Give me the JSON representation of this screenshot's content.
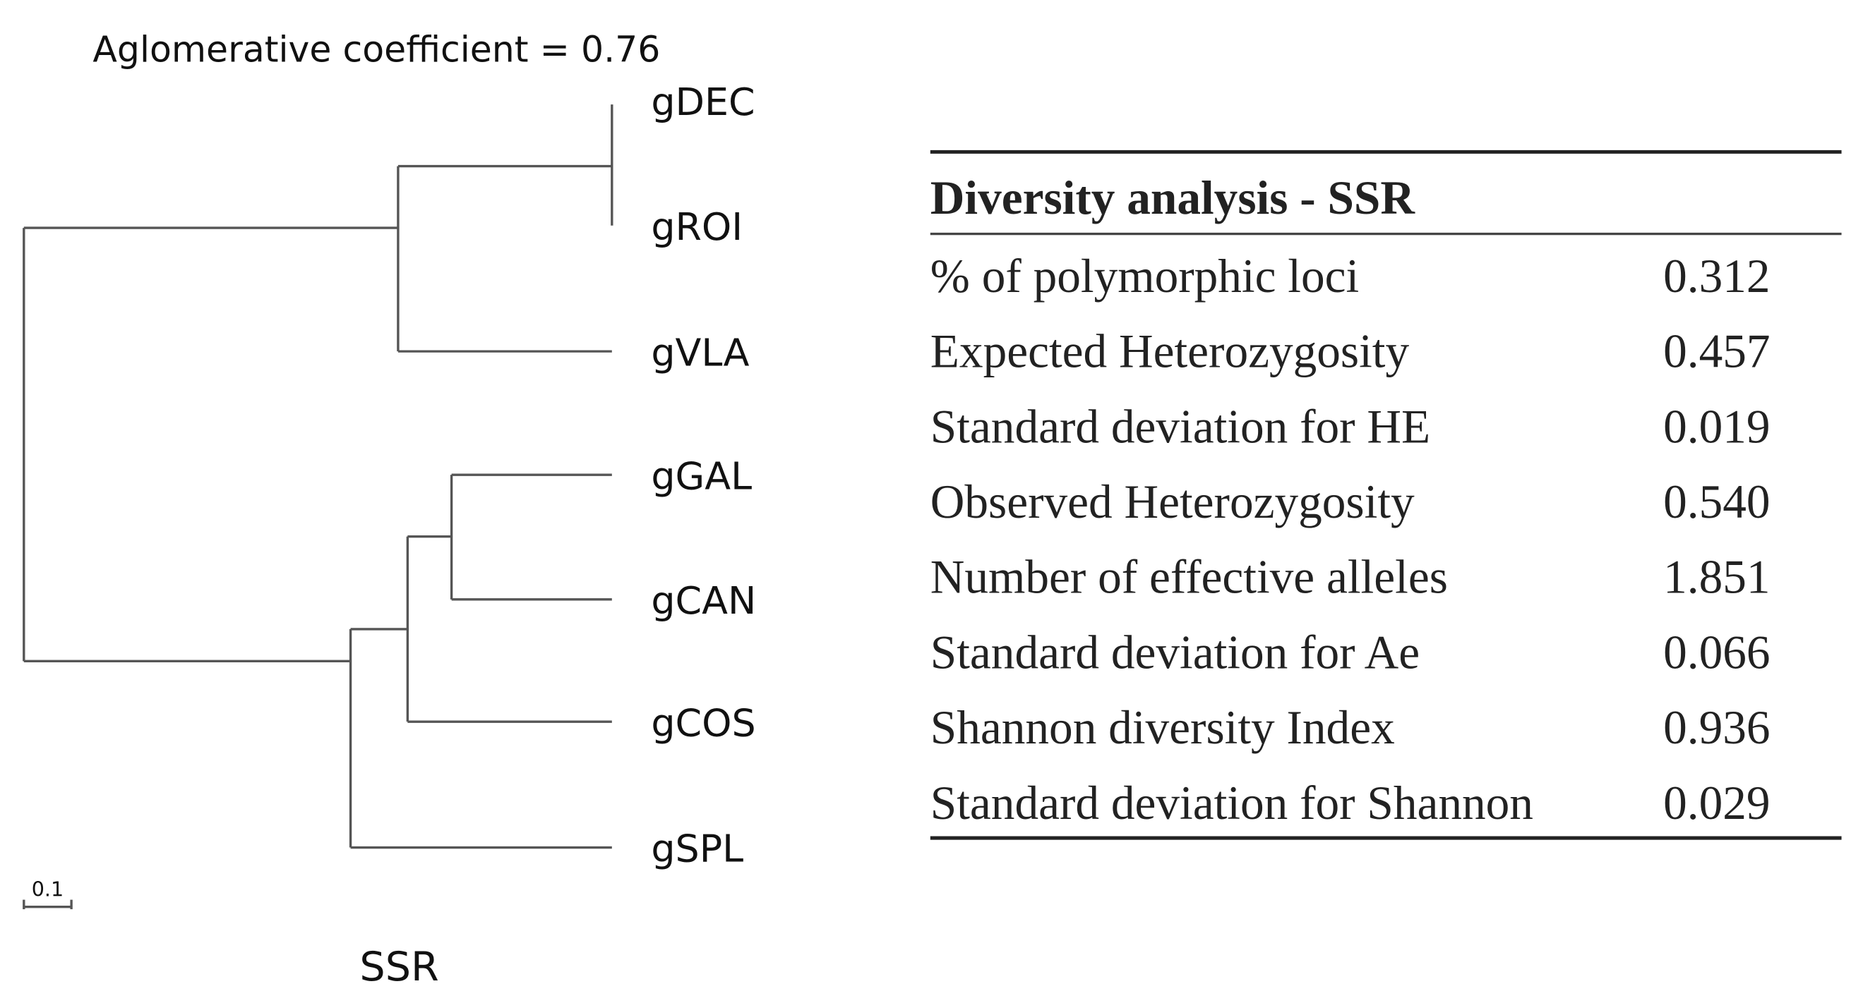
{
  "dendrogram": {
    "title": "Aglomerative coefficient = 0.76",
    "leaves": [
      "gDEC",
      "gROI",
      "gVLA",
      "gGAL",
      "gCAN",
      "gCOS",
      "gSPL"
    ],
    "scale_label": "0.1",
    "caption": "SSR"
  },
  "table": {
    "title": "Diversity analysis - SSR",
    "rows": [
      [
        "% of polymorphic loci",
        "0.312"
      ],
      [
        "Expected Heterozygosity",
        "0.457"
      ],
      [
        "Standard deviation for HE",
        "0.019"
      ],
      [
        "Observed Heterozygosity",
        "0.540"
      ],
      [
        "Number of effective alleles",
        "1.851"
      ],
      [
        "Standard deviation for Ae",
        "0.066"
      ],
      [
        "Shannon diversity Index",
        "0.936"
      ],
      [
        "Standard deviation for Shannon",
        "0.029"
      ]
    ]
  }
}
